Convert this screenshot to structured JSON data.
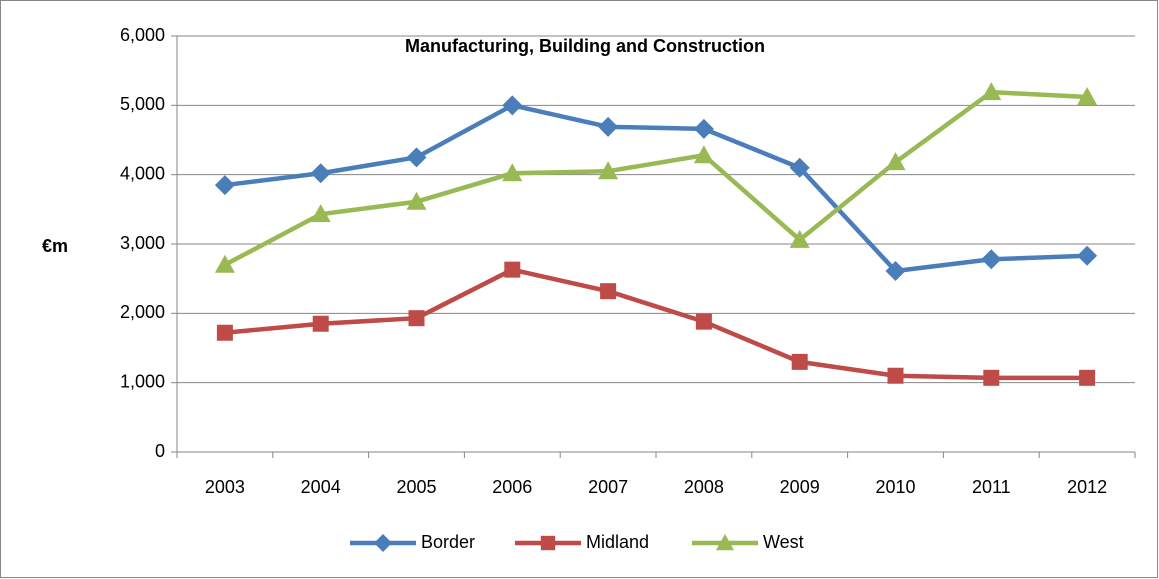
{
  "chart_data": {
    "type": "line",
    "title": "Manufacturing, Building and Construction",
    "y_label": "€m",
    "categories": [
      "2003",
      "2004",
      "2005",
      "2006",
      "2007",
      "2008",
      "2009",
      "2010",
      "2011",
      "2012"
    ],
    "series": [
      {
        "name": "Border",
        "color": "#4a7ebb",
        "marker": "diamond",
        "values": [
          3850,
          4020,
          4250,
          5000,
          4690,
          4660,
          4100,
          2610,
          2780,
          2830
        ]
      },
      {
        "name": "Midland",
        "color": "#be4b48",
        "marker": "square",
        "values": [
          1720,
          1850,
          1930,
          2630,
          2320,
          1880,
          1300,
          1100,
          1070,
          1070
        ]
      },
      {
        "name": "West",
        "color": "#98b954",
        "marker": "triangle",
        "values": [
          2700,
          3430,
          3610,
          4020,
          4050,
          4280,
          3060,
          4180,
          5190,
          5120
        ]
      }
    ],
    "ylim": [
      0,
      6000
    ],
    "yticks": [
      0,
      {
        "value": 1000,
        "label": "1,000"
      },
      {
        "value": 2000,
        "label": "2,000"
      },
      {
        "value": 3000,
        "label": "3,000"
      },
      {
        "value": 4000,
        "label": "4,000"
      },
      {
        "value": 5000,
        "label": "5,000"
      },
      {
        "value": 6000,
        "label": "6,000"
      }
    ],
    "grid": true,
    "legend": "bottom"
  }
}
